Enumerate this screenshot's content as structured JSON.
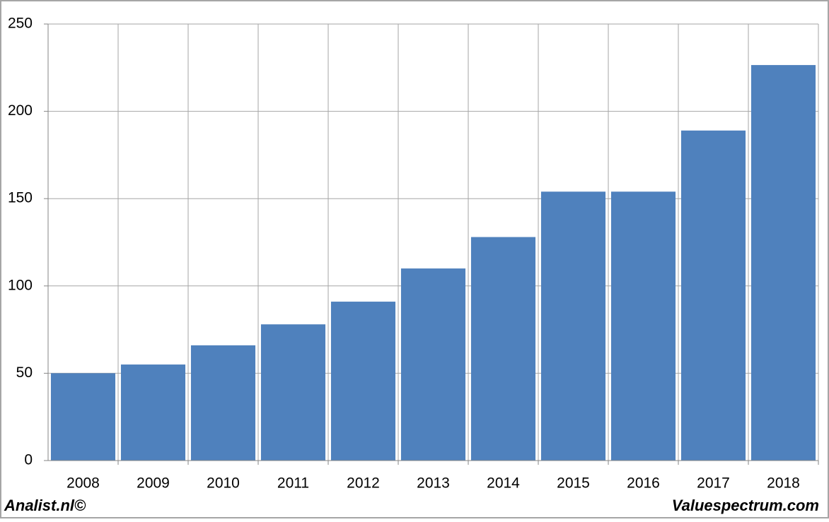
{
  "chart_data": {
    "type": "bar",
    "categories": [
      "2008",
      "2009",
      "2010",
      "2011",
      "2012",
      "2013",
      "2014",
      "2015",
      "2016",
      "2017",
      "2018"
    ],
    "values": [
      50,
      55,
      66,
      78,
      91,
      110,
      128,
      154,
      154,
      189,
      226.5
    ],
    "color": "#4f81bd",
    "ylim": [
      0,
      250
    ],
    "yticks": [
      0,
      50,
      100,
      150,
      200,
      250
    ],
    "grid": true
  },
  "footer": {
    "left": "Analist.nl©",
    "right": "Valuespectrum.com"
  }
}
